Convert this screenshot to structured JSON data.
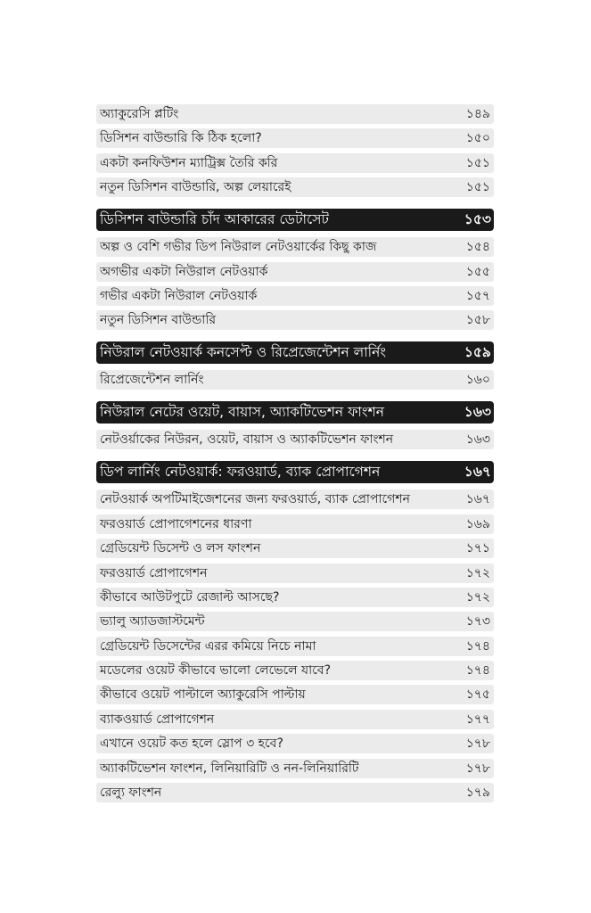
{
  "entries": [
    {
      "type": "item",
      "title": "অ্যাকুরেসি প্লটিং",
      "page": "১৪৯"
    },
    {
      "type": "item",
      "title": "ডিসিশন বাউন্ডারি কি ঠিক হলো?",
      "page": "১৫০"
    },
    {
      "type": "item",
      "title": "একটা কনফিউশন ম্যাট্রিক্স তৈরি করি",
      "page": "১৫১"
    },
    {
      "type": "item",
      "title": "নতুন ডিসিশন বাউন্ডারি, অল্প লেয়ারেই",
      "page": "১৫১"
    },
    {
      "type": "chapter",
      "title": "ডিসিশন বাউন্ডারি চাঁদ আকারের ডেটাসেট",
      "page": "১৫৩"
    },
    {
      "type": "item",
      "title": "অল্প ও বেশি গভীর ডিপ নিউরাল নেটওয়ার্কের কিছু কাজ",
      "page": "১৫৪"
    },
    {
      "type": "item",
      "title": "অগভীর একটা নিউরাল নেটওয়ার্ক",
      "page": "১৫৫"
    },
    {
      "type": "item",
      "title": "গভীর একটা নিউরাল নেটওয়ার্ক",
      "page": "১৫৭"
    },
    {
      "type": "item",
      "title": "নতুন ডিসিশন বাউন্ডারি",
      "page": "১৫৮"
    },
    {
      "type": "chapter",
      "title": "নিউরাল নেটওয়ার্ক কনসেপ্ট ও রিপ্রেজেন্টেশন লার্নিং",
      "page": "১৫৯"
    },
    {
      "type": "item",
      "title": "রিপ্রেজেন্টেশন লার্নিং",
      "page": "১৬০"
    },
    {
      "type": "chapter",
      "title": "নিউরাল নেটের ওয়েট, বায়াস, অ্যাকটিভেশন ফাংশন",
      "page": "১৬৩"
    },
    {
      "type": "item",
      "title": "নেটওর্য়াকের নিউরন, ওয়েট, বায়াস ও অ্যাকটিভেশন ফাংশন",
      "page": "১৬৩"
    },
    {
      "type": "chapter",
      "title": "ডিপ লার্নিং নেটওয়ার্ক: ফরওয়ার্ড, ব্যাক প্রোপাগেশন",
      "page": "১৬৭"
    },
    {
      "type": "item",
      "title": "নেটওয়ার্ক অপটিমাইজেশনের জন্য ফরওয়ার্ড, ব্যাক প্রোপাগেশন",
      "page": "১৬৭"
    },
    {
      "type": "item",
      "title": "ফরওয়ার্ড প্রোপাগেশনের ধারণা",
      "page": "১৬৯"
    },
    {
      "type": "item",
      "title": "গ্রেডিয়েন্ট ডিসেন্ট ও লস ফাংশন",
      "page": "১৭১"
    },
    {
      "type": "item",
      "title": "ফরওয়ার্ড প্রোপাগেশন",
      "page": "১৭২"
    },
    {
      "type": "item",
      "title": "কীভাবে আউটপুটে রেজাল্ট আসছে?",
      "page": "১৭২"
    },
    {
      "type": "item",
      "title": "ভ্যালু অ্যাডজাস্টমেন্ট",
      "page": "১৭৩"
    },
    {
      "type": "item",
      "title": "গ্রেডিয়েন্ট ডিসেন্টের এরর কমিয়ে নিচে নামা",
      "page": "১৭৪"
    },
    {
      "type": "item",
      "title": "মডেলের ওয়েট কীভাবে ভালো লেভেলে যাবে?",
      "page": "১৭৪"
    },
    {
      "type": "item",
      "title": "কীভাবে ওয়েট পাল্টালে অ্যাকুরেসি পাল্টায়",
      "page": "১৭৫"
    },
    {
      "type": "item",
      "title": "ব্যাকওয়ার্ড প্রোপাগেশন",
      "page": "১৭৭"
    },
    {
      "type": "item",
      "title": "এখানে ওয়েট কত হলে স্লোপ ৩ হবে?",
      "page": "১৭৮"
    },
    {
      "type": "item",
      "title": "অ্যাকটিভেশন ফাংশন, লিনিয়ারিটি ও নন-লিনিয়ারিটি",
      "page": "১৭৮"
    },
    {
      "type": "item",
      "title": "রেল্যু ফাংশন",
      "page": "১৭৯"
    }
  ]
}
